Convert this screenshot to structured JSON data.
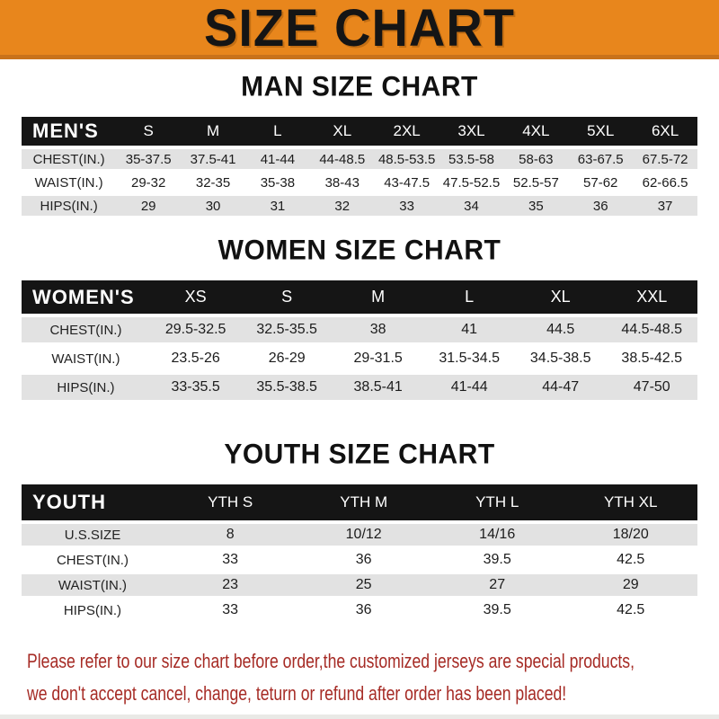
{
  "banner": {
    "title": "SIZE CHART"
  },
  "colors": {
    "banner_orange": "#E8861C",
    "banner_edge": "#C9721A",
    "table_header_bg": "#151515",
    "row_stripe_gray": "#E2E2E2",
    "notice_red": "#A62B25"
  },
  "sections": {
    "men": {
      "heading": "MAN SIZE CHART",
      "table": {
        "label": "MEN'S",
        "columns": [
          "S",
          "M",
          "L",
          "XL",
          "2XL",
          "3XL",
          "4XL",
          "5XL",
          "6XL"
        ],
        "rows": [
          {
            "label": "CHEST(IN.)",
            "values": [
              "35-37.5",
              "37.5-41",
              "41-44",
              "44-48.5",
              "48.5-53.5",
              "53.5-58",
              "58-63",
              "63-67.5",
              "67.5-72"
            ]
          },
          {
            "label": "WAIST(IN.)",
            "values": [
              "29-32",
              "32-35",
              "35-38",
              "38-43",
              "43-47.5",
              "47.5-52.5",
              "52.5-57",
              "57-62",
              "62-66.5"
            ]
          },
          {
            "label": "HIPS(IN.)",
            "values": [
              "29",
              "30",
              "31",
              "32",
              "33",
              "34",
              "35",
              "36",
              "37"
            ]
          }
        ]
      }
    },
    "women": {
      "heading": "WOMEN SIZE CHART",
      "table": {
        "label": "WOMEN'S",
        "columns": [
          "XS",
          "S",
          "M",
          "L",
          "XL",
          "XXL"
        ],
        "rows": [
          {
            "label": "CHEST(IN.)",
            "values": [
              "29.5-32.5",
              "32.5-35.5",
              "38",
              "41",
              "44.5",
              "44.5-48.5"
            ]
          },
          {
            "label": "WAIST(IN.)",
            "values": [
              "23.5-26",
              "26-29",
              "29-31.5",
              "31.5-34.5",
              "34.5-38.5",
              "38.5-42.5"
            ]
          },
          {
            "label": "HIPS(IN.)",
            "values": [
              "33-35.5",
              "35.5-38.5",
              "38.5-41",
              "41-44",
              "44-47",
              "47-50"
            ]
          }
        ]
      }
    },
    "youth": {
      "heading": "YOUTH SIZE CHART",
      "table": {
        "label": "YOUTH",
        "columns": [
          "YTH S",
          "YTH M",
          "YTH L",
          "YTH XL"
        ],
        "rows": [
          {
            "label": "U.S.SIZE",
            "values": [
              "8",
              "10/12",
              "14/16",
              "18/20"
            ]
          },
          {
            "label": "CHEST(IN.)",
            "values": [
              "33",
              "36",
              "39.5",
              "42.5"
            ]
          },
          {
            "label": "WAIST(IN.)",
            "values": [
              "23",
              "25",
              "27",
              "29"
            ]
          },
          {
            "label": "HIPS(IN.)",
            "values": [
              "33",
              "36",
              "39.5",
              "42.5"
            ]
          }
        ]
      }
    }
  },
  "notice": {
    "line1": "Please refer to our size chart before order,the customized jerseys are special products,",
    "line2": "we don't accept cancel, change, teturn or refund after order has been placed!"
  }
}
